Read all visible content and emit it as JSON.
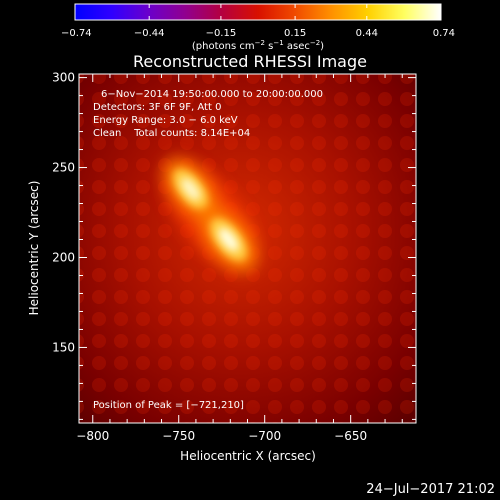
{
  "colors": {
    "background": "#000000",
    "foreground": "#ffffff",
    "colormap": [
      "#0000ff",
      "#2f00ff",
      "#6a00cc",
      "#900090",
      "#b40040",
      "#d81000",
      "#f04a00",
      "#ff9000",
      "#ffd000",
      "#ffff60",
      "#ffffff"
    ]
  },
  "chart_data": {
    "type": "heatmap",
    "title": "Reconstructed RHESSI Image",
    "xlabel": "Heliocentric X (arcsec)",
    "ylabel": "Heliocentric Y (arcsec)",
    "xlim": [
      -808,
      -612
    ],
    "ylim": [
      108,
      302
    ],
    "x_ticks": [
      -800,
      -750,
      -700,
      -650
    ],
    "y_ticks": [
      150,
      200,
      250,
      300
    ],
    "x_tick_labels": [
      "−800",
      "−750",
      "−700",
      "−650"
    ],
    "y_tick_labels": [
      "150",
      "200",
      "250",
      "300"
    ],
    "colorbar": {
      "range": [
        -0.74,
        0.74
      ],
      "ticks": [
        -0.74,
        -0.44,
        -0.15,
        0.15,
        0.44,
        0.74
      ],
      "tick_labels": [
        "−0.74",
        "−0.44",
        "−0.15",
        "0.15",
        "0.44",
        "0.74"
      ],
      "units_prefix": "(photons cm",
      "units_exp1": "−2",
      "units_mid": " s",
      "units_exp2": "−1",
      "units_mid2": " asec",
      "units_exp3": "−2",
      "units_suffix": ")"
    },
    "info_lines": [
      "6−Nov−2014 19:50:00.000 to 20:00:00.000",
      "Detectors: 3F 6F 9F, Att 0",
      "Energy Range: 3.0 − 6.0 keV",
      "Clean    Total counts: 8.14E+04"
    ],
    "peak_label": "Position of Peak = [−721,210]",
    "sources": [
      {
        "x": -743,
        "y": 238,
        "peak": 0.62
      },
      {
        "x": -721,
        "y": 210,
        "peak": 0.74
      }
    ],
    "timestamp": "24−Jul−2017 21:02"
  }
}
